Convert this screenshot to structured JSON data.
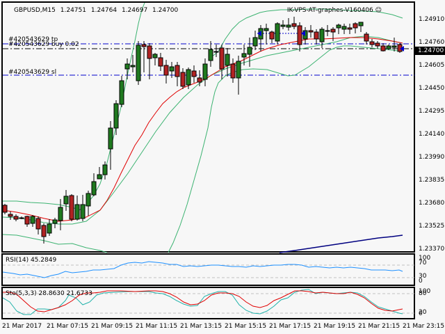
{
  "chart": {
    "symbol": "GBPUSD,M15",
    "open": "1.24751",
    "high": "1.24764",
    "low": "1.24697",
    "close": "1.24700",
    "ea_name": "IK-VPS-AT-graphes-V160406",
    "ea_status_icon": "smiley-icon",
    "current_price": "1.24700",
    "colors": {
      "background": "#f7f7f7",
      "bull_candle": "#1f7a1f",
      "bear_candle": "#b22222",
      "bollinger": "#3cb371",
      "ma": "#e00000",
      "sar_line": "#000080",
      "order_line": "#0000cc",
      "rsi": "#1e90ff",
      "sto_main": "#20b2aa",
      "sto_signal": "#e00000"
    }
  },
  "trade_lines": {
    "tp": "#420543629 tp",
    "buy": "#420543629 buy 0.02",
    "sl": "#420543629 sl"
  },
  "price_axis": [
    "1.24910",
    "1.24760",
    "1.24605",
    "1.24450",
    "1.24295",
    "1.24140",
    "1.23990",
    "1.23835",
    "1.23680",
    "1.23525",
    "1.23370"
  ],
  "rsi": {
    "label": "RSI(14) 45.2849",
    "levels": [
      "100",
      "70",
      "30",
      "0"
    ]
  },
  "stochastic": {
    "label": "Sto(5,3,3) 28.8630 21.6733",
    "levels": [
      "100",
      "80",
      "20",
      "0"
    ]
  },
  "time_axis": [
    "21 Mar 2017",
    "21 Mar 07:15",
    "21 Mar 09:15",
    "21 Mar 11:15",
    "21 Mar 13:15",
    "21 Mar 15:15",
    "21 Mar 17:15",
    "21 Mar 19:15",
    "21 Mar 21:15",
    "21 Mar 23:15"
  ]
}
